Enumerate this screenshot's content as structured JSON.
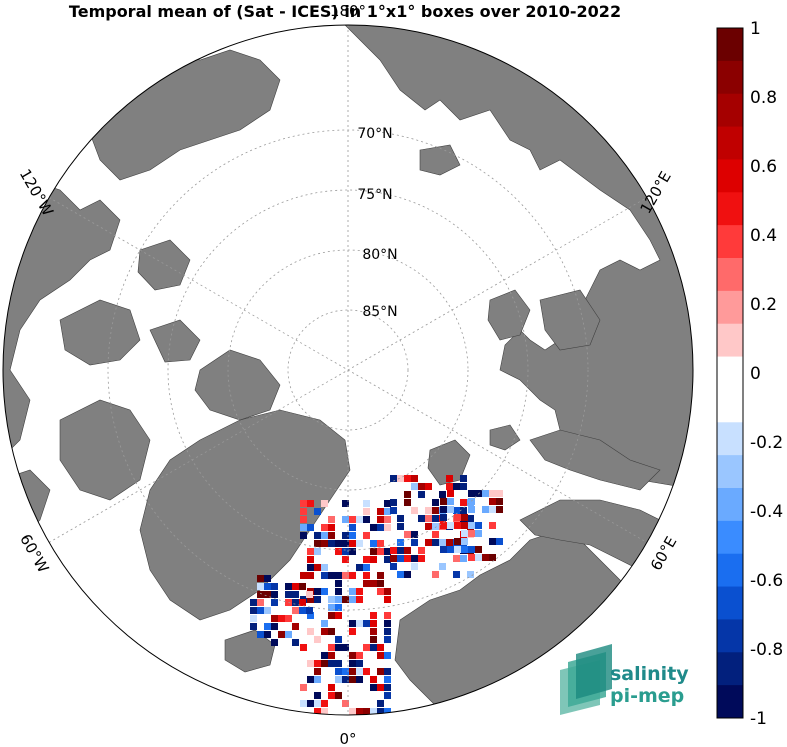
{
  "title": "Temporal mean of (Sat - ICES) in 1°x1° boxes over 2010-2022",
  "map": {
    "projection": "north-polar-stereographic",
    "land_color": "#808080",
    "ocean_color": "#ffffff",
    "lon_labels": [
      {
        "text": "180°",
        "lon": 180
      },
      {
        "text": "120°E",
        "lon": 120
      },
      {
        "text": "60°E",
        "lon": 60
      },
      {
        "text": "0°",
        "lon": 0
      },
      {
        "text": "60°W",
        "lon": -60
      },
      {
        "text": "120°W",
        "lon": -120
      }
    ],
    "lat_labels": [
      {
        "text": "70°N",
        "lat": 70
      },
      {
        "text": "75°N",
        "lat": 75
      },
      {
        "text": "80°N",
        "lat": 80
      },
      {
        "text": "85°N",
        "lat": 85
      }
    ]
  },
  "colorbar": {
    "min": -1,
    "max": 1,
    "step": 0.1,
    "ticks": [
      "1",
      "0.8",
      "0.6",
      "0.4",
      "0.2",
      "0",
      "-0.2",
      "-0.4",
      "-0.6",
      "-0.8",
      "-1"
    ],
    "colors_top_to_bottom": [
      "#6b0000",
      "#8b0000",
      "#a50000",
      "#c00000",
      "#dd0000",
      "#f01010",
      "#ff3a3a",
      "#ff6a6a",
      "#ff9a9a",
      "#ffc8c8",
      "#ffffff",
      "#ffffff",
      "#c8e0ff",
      "#9ac6ff",
      "#6aaaff",
      "#3a8cff",
      "#1a6ef0",
      "#0a50d0",
      "#0536a8",
      "#02207d",
      "#000a5a"
    ]
  },
  "logo": {
    "line1": "salinity",
    "line2": "pi-mep"
  }
}
